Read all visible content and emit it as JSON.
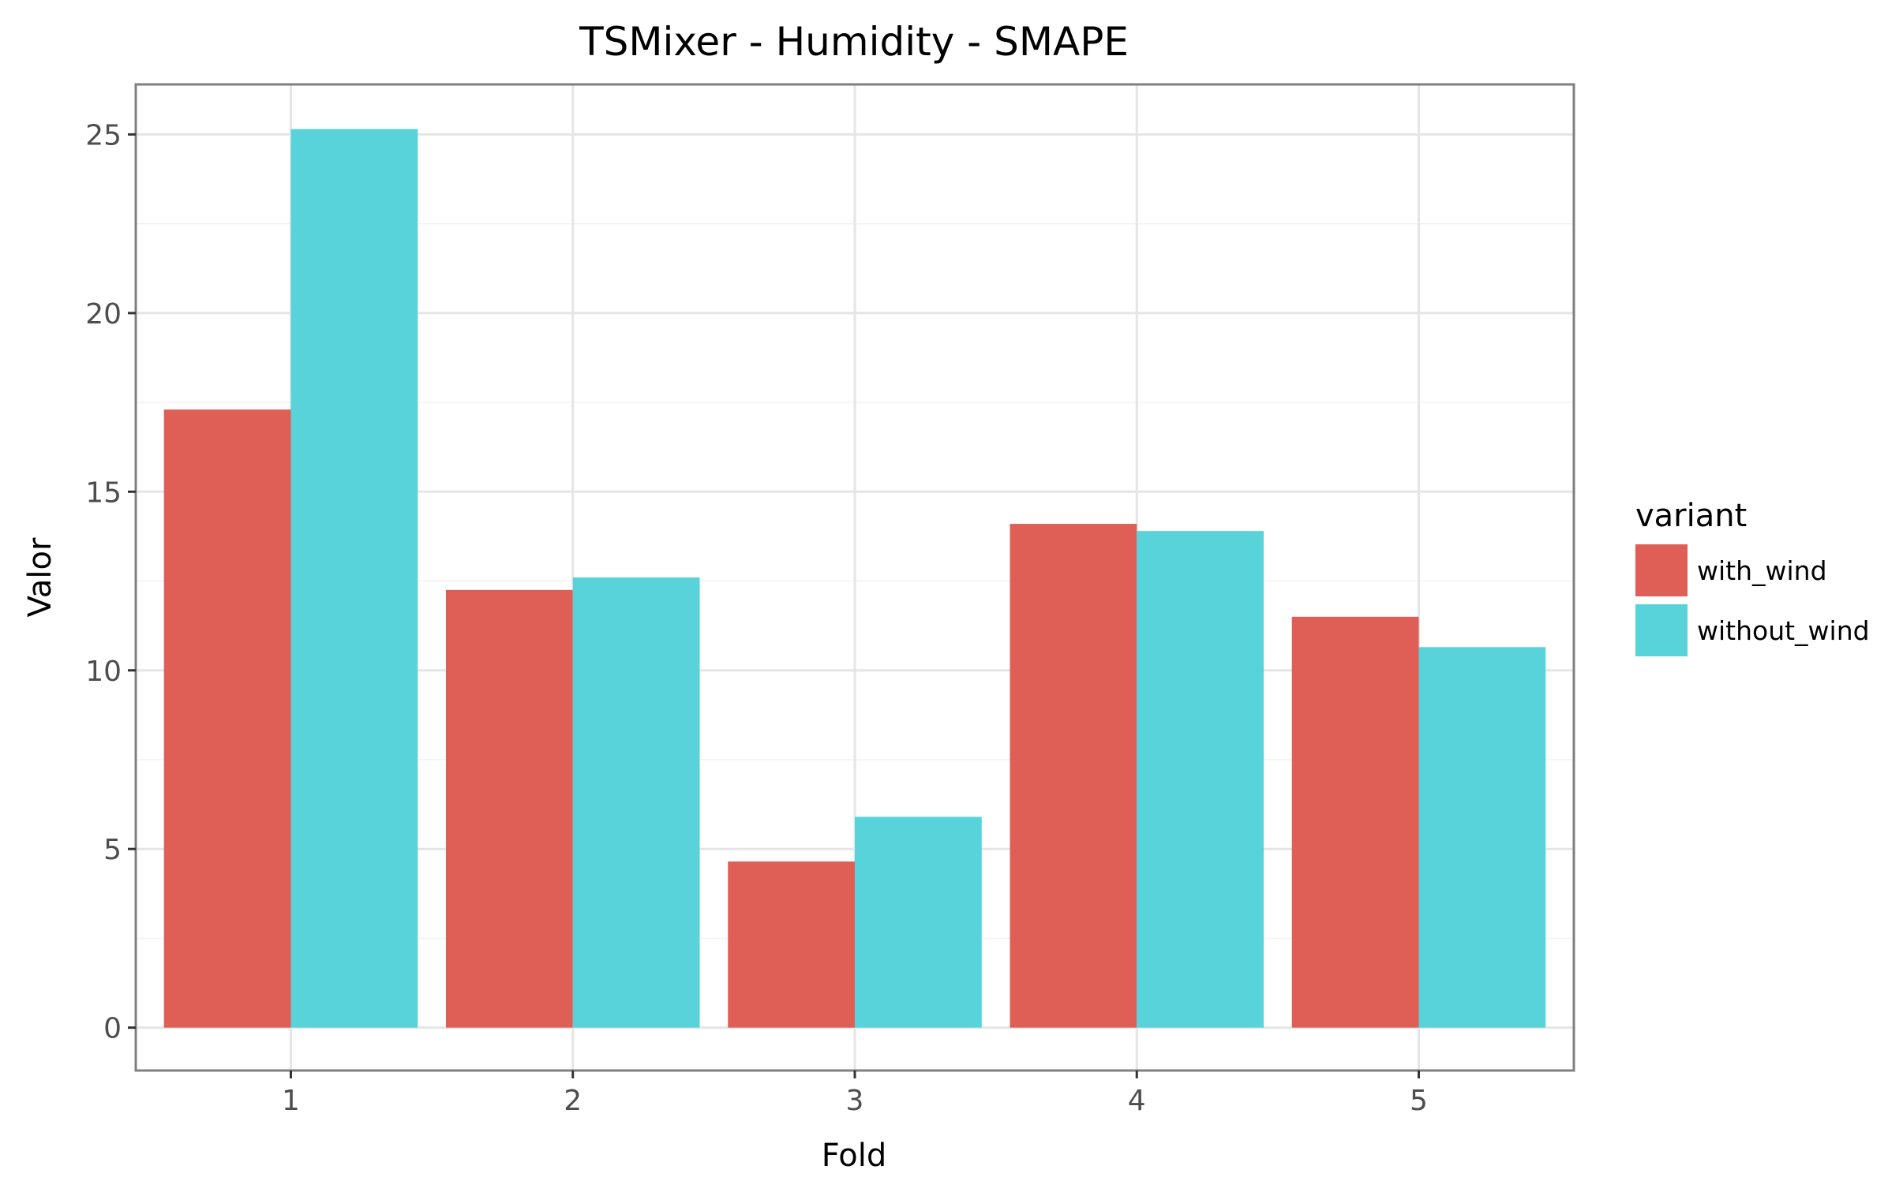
{
  "chart_data": {
    "type": "bar",
    "title": "TSMixer - Humidity - SMAPE",
    "xlabel": "Fold",
    "ylabel": "Valor",
    "categories": [
      "1",
      "2",
      "3",
      "4",
      "5"
    ],
    "series": [
      {
        "name": "with_wind",
        "color": "#df5f57",
        "values": [
          17.3,
          12.25,
          4.65,
          14.1,
          11.5
        ]
      },
      {
        "name": "without_wind",
        "color": "#58d3da",
        "values": [
          25.15,
          12.6,
          5.9,
          13.9,
          10.65
        ]
      }
    ],
    "ylim": [
      -1.2,
      26.4
    ],
    "yticks": [
      0,
      5,
      10,
      15,
      20,
      25
    ],
    "ytick_labels": [
      "0",
      "5",
      "10",
      "15",
      "20",
      "25"
    ],
    "grid": true,
    "legend": {
      "title": "variant",
      "position": "right"
    }
  }
}
